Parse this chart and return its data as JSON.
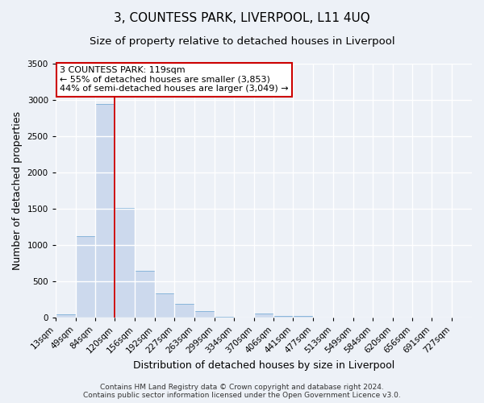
{
  "title": "3, COUNTESS PARK, LIVERPOOL, L11 4UQ",
  "subtitle": "Size of property relative to detached houses in Liverpool",
  "xlabel": "Distribution of detached houses by size in Liverpool",
  "ylabel": "Number of detached properties",
  "bin_labels": [
    "13sqm",
    "49sqm",
    "84sqm",
    "120sqm",
    "156sqm",
    "192sqm",
    "227sqm",
    "263sqm",
    "299sqm",
    "334sqm",
    "370sqm",
    "406sqm",
    "441sqm",
    "477sqm",
    "513sqm",
    "549sqm",
    "584sqm",
    "620sqm",
    "656sqm",
    "691sqm",
    "727sqm"
  ],
  "bin_edges": [
    13,
    49,
    84,
    120,
    156,
    192,
    227,
    263,
    299,
    334,
    370,
    406,
    441,
    477,
    513,
    549,
    584,
    620,
    656,
    691,
    727,
    763
  ],
  "bar_heights": [
    50,
    1120,
    2950,
    1510,
    650,
    335,
    195,
    90,
    10,
    0,
    60,
    20,
    25,
    0,
    0,
    0,
    0,
    0,
    0,
    0,
    0
  ],
  "bar_color": "#ccd9ed",
  "bar_edgecolor": "#7aaed6",
  "vline_x": 120,
  "vline_color": "#cc0000",
  "ylim": [
    0,
    3500
  ],
  "yticks": [
    0,
    500,
    1000,
    1500,
    2000,
    2500,
    3000,
    3500
  ],
  "annotation_title": "3 COUNTESS PARK: 119sqm",
  "annotation_line1": "← 55% of detached houses are smaller (3,853)",
  "annotation_line2": "44% of semi-detached houses are larger (3,049) →",
  "annotation_box_color": "#ffffff",
  "annotation_box_edgecolor": "#cc0000",
  "footer_line1": "Contains HM Land Registry data © Crown copyright and database right 2024.",
  "footer_line2": "Contains public sector information licensed under the Open Government Licence v3.0.",
  "background_color": "#edf1f7",
  "plot_background_color": "#edf1f7",
  "grid_color": "#ffffff",
  "title_fontsize": 11,
  "subtitle_fontsize": 9.5,
  "axis_label_fontsize": 9,
  "tick_fontsize": 7.5,
  "annotation_fontsize": 8,
  "footer_fontsize": 6.5
}
